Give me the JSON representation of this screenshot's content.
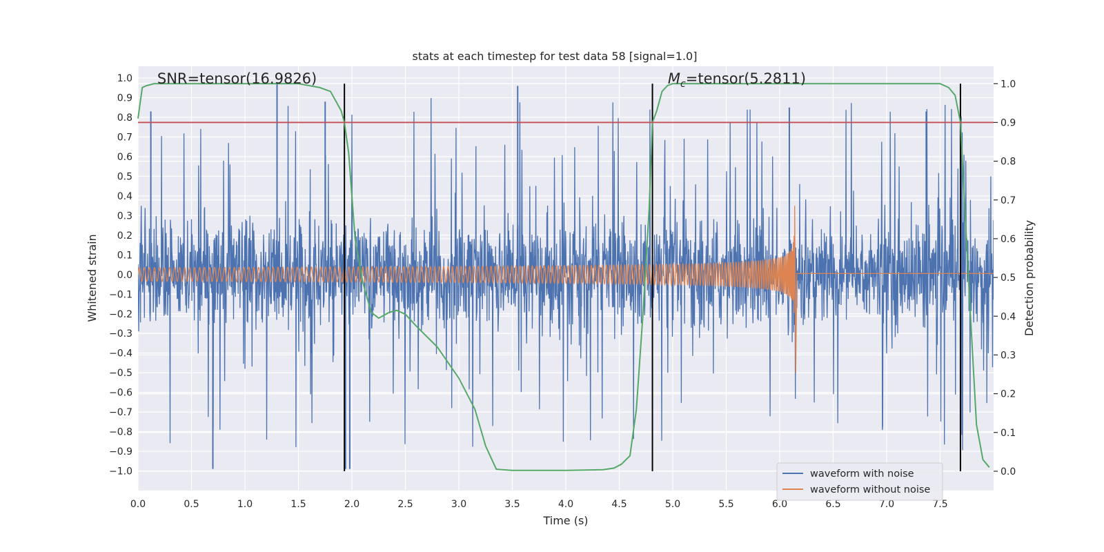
{
  "chart_data": {
    "type": "line",
    "title": "stats at each timestep for test data 58 [signal=1.0]",
    "xlabel": "Time (s)",
    "ylabel": "Whitened strain",
    "ylabel_right": "Detection probability",
    "xlim": [
      0.0,
      8.0
    ],
    "ylim": [
      -1.1,
      1.06
    ],
    "ylim_right": [
      -0.05,
      1.045
    ],
    "x_ticks": [
      0.0,
      0.5,
      1.0,
      1.5,
      2.0,
      2.5,
      3.0,
      3.5,
      4.0,
      4.5,
      5.0,
      5.5,
      6.0,
      6.5,
      7.0,
      7.5
    ],
    "x_tick_labels": [
      "0.0",
      "0.5",
      "1.0",
      "1.5",
      "2.0",
      "2.5",
      "3.0",
      "3.5",
      "4.0",
      "4.5",
      "5.0",
      "5.5",
      "6.0",
      "6.5",
      "7.0",
      "7.5"
    ],
    "y_ticks": [
      1.0,
      0.9,
      0.8,
      0.7,
      0.6,
      0.5,
      0.4,
      0.3,
      0.2,
      0.1,
      0.0,
      -0.1,
      -0.2,
      -0.3,
      -0.4,
      -0.5,
      -0.6,
      -0.7,
      -0.8,
      -0.9,
      -1.0
    ],
    "y_tick_labels": [
      "1.0",
      "0.9",
      "0.8",
      "0.7",
      "0.6",
      "0.5",
      "0.4",
      "0.3",
      "0.2",
      "0.1",
      "0.0",
      "−0.1",
      "−0.2",
      "−0.3",
      "−0.4",
      "−0.5",
      "−0.6",
      "−0.7",
      "−0.8",
      "−0.9",
      "−1.0"
    ],
    "y_right_ticks": [
      1.0,
      0.9,
      0.8,
      0.7,
      0.6,
      0.5,
      0.4,
      0.3,
      0.2,
      0.1,
      0.0
    ],
    "y_right_tick_labels": [
      "1.0",
      "0.9",
      "0.8",
      "0.7",
      "0.6",
      "0.5",
      "0.4",
      "0.3",
      "0.2",
      "0.1",
      "0.0"
    ],
    "threshold": {
      "value": 0.9,
      "axis": "right",
      "color": "#c44e52"
    },
    "vertical_markers": [
      1.93,
      4.81,
      7.69
    ],
    "annotations": [
      {
        "text": "SNR=tensor(16.9826)",
        "x": 0.18,
        "y": 1.0
      },
      {
        "text_prefix": "M",
        "text_sub": "c",
        "text_suffix": "=tensor(5.2811)",
        "x": 5.6,
        "y": 1.0
      }
    ],
    "series": [
      {
        "name": "waveform with noise",
        "axis": "left",
        "color": "#4c72b0",
        "kind": "noise",
        "band_sigma": 0.135,
        "notable_peaks": [
          {
            "x": 1.3,
            "y": 0.97
          },
          {
            "x": 3.55,
            "y": 0.96
          },
          {
            "x": 0.7,
            "y": -0.99
          },
          {
            "x": 1.98,
            "y": -0.99
          },
          {
            "x": 1.94,
            "y": -0.99
          },
          {
            "x": 0.12,
            "y": 0.83
          },
          {
            "x": 1.75,
            "y": 0.88
          },
          {
            "x": 7.37,
            "y": 0.83
          },
          {
            "x": 6.09,
            "y": 0.85
          }
        ]
      },
      {
        "name": "waveform without noise",
        "axis": "left",
        "color": "#dd8452",
        "kind": "chirp",
        "start_amplitude": 0.035,
        "peak_amplitude_pos": 0.35,
        "peak_amplitude_neg": -0.5,
        "merger_time": 6.14
      },
      {
        "name": "Detection probability",
        "axis": "right",
        "color": "#55a868",
        "x": [
          0.0,
          0.04,
          0.08,
          0.15,
          0.3,
          1.5,
          1.7,
          1.8,
          1.86,
          1.9,
          1.93,
          1.97,
          2.03,
          2.1,
          2.18,
          2.25,
          2.35,
          2.42,
          2.5,
          2.6,
          2.8,
          3.0,
          3.15,
          3.25,
          3.35,
          3.5,
          4.0,
          4.35,
          4.45,
          4.52,
          4.6,
          4.66,
          4.72,
          4.78,
          4.81,
          4.85,
          4.9,
          4.95,
          5.0,
          5.1,
          7.3,
          7.5,
          7.58,
          7.64,
          7.69,
          7.73,
          7.78,
          7.84,
          7.9,
          7.96
        ],
        "values": [
          0.91,
          0.99,
          0.995,
          1.0,
          1.0,
          1.0,
          0.99,
          0.98,
          0.95,
          0.93,
          0.9,
          0.82,
          0.6,
          0.49,
          0.41,
          0.395,
          0.41,
          0.415,
          0.405,
          0.375,
          0.32,
          0.24,
          0.16,
          0.065,
          0.005,
          0.002,
          0.002,
          0.004,
          0.008,
          0.018,
          0.04,
          0.16,
          0.4,
          0.68,
          0.9,
          0.93,
          0.98,
          0.995,
          1.0,
          1.0,
          1.0,
          1.0,
          0.99,
          0.97,
          0.9,
          0.68,
          0.42,
          0.12,
          0.03,
          0.01
        ]
      }
    ],
    "legend": {
      "position": "lower-right",
      "entries": [
        {
          "label": "waveform with noise",
          "color": "#4c72b0"
        },
        {
          "label": "waveform without noise",
          "color": "#dd8452"
        }
      ]
    },
    "style": {
      "background": "#eaeaf2",
      "grid": true,
      "grid_color": "#ffffff"
    }
  }
}
